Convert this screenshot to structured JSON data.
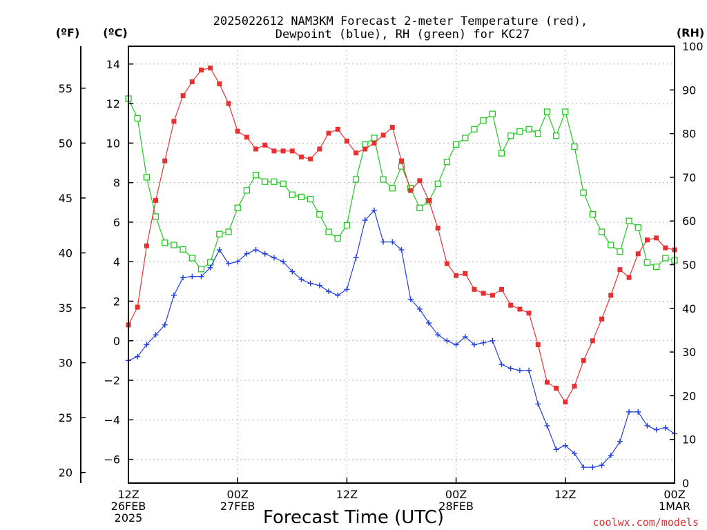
{
  "chart_data": {
    "type": "line",
    "title_line1": "2025022612 NAM3KM Forecast 2-meter Temperature (red),",
    "title_line2": "Dewpoint (blue), RH (green) for KC27",
    "xlabel": "Forecast Time (UTC)",
    "credit": "coolwx.com/models",
    "left_units_f": "(ºF)",
    "left_units_c": "(ºC)",
    "right_units": "(RH)",
    "x_hours_range": [
      0,
      60
    ],
    "x_ticks": [
      {
        "hour": 0,
        "line1": "12Z",
        "line2": "26FEB",
        "line3": "2025"
      },
      {
        "hour": 12,
        "line1": "00Z",
        "line2": "27FEB",
        "line3": ""
      },
      {
        "hour": 24,
        "line1": "12Z",
        "line2": "",
        "line3": ""
      },
      {
        "hour": 36,
        "line1": "00Z",
        "line2": "28FEB",
        "line3": ""
      },
      {
        "hour": 48,
        "line1": "12Z",
        "line2": "",
        "line3": ""
      },
      {
        "hour": 60,
        "line1": "00Z",
        "line2": "1MAR",
        "line3": ""
      }
    ],
    "celsius_range": [
      -7.2,
      14.9
    ],
    "celsius_ticks": [
      "14",
      "12",
      "10",
      "8",
      "6",
      "4",
      "2",
      "0",
      "−2",
      "−4",
      "−6"
    ],
    "celsius_tick_values": [
      14,
      12,
      10,
      8,
      6,
      4,
      2,
      0,
      -2,
      -4,
      -6
    ],
    "fahrenheit_ticks": [
      "55",
      "50",
      "45",
      "40",
      "35",
      "30",
      "25",
      "20"
    ],
    "fahrenheit_tick_values": [
      55,
      50,
      45,
      40,
      35,
      30,
      25,
      20
    ],
    "rh_range": [
      0,
      100
    ],
    "rh_ticks": [
      "100",
      "90",
      "80",
      "70",
      "60",
      "50",
      "40",
      "30",
      "20",
      "10",
      "0"
    ],
    "rh_tick_values": [
      100,
      90,
      80,
      70,
      60,
      50,
      40,
      30,
      20,
      10,
      0
    ],
    "colors": {
      "temperature": "#e83030",
      "dewpoint": "#2040e0",
      "rh": "#20c820"
    },
    "series": [
      {
        "name": "Temperature",
        "units": "C",
        "values": [
          0.8,
          1.7,
          4.8,
          7.1,
          9.1,
          11.1,
          12.4,
          13.1,
          13.7,
          13.8,
          13.0,
          12.0,
          10.6,
          10.3,
          9.7,
          9.9,
          9.6,
          9.6,
          9.6,
          9.3,
          9.2,
          9.7,
          10.5,
          10.7,
          10.1,
          9.5,
          9.7,
          10.0,
          10.4,
          10.8,
          9.1,
          7.6,
          8.1,
          7.1,
          5.7,
          3.9,
          3.3,
          3.4,
          2.6,
          2.4,
          2.3,
          2.6,
          1.8,
          1.6,
          1.4,
          -0.2,
          -2.1,
          -2.4,
          -3.1,
          -2.3,
          -1.0,
          0.0,
          1.1,
          2.3,
          3.6,
          3.2,
          4.4,
          5.1,
          5.2,
          4.7,
          4.6
        ]
      },
      {
        "name": "Dewpoint",
        "units": "C",
        "values": [
          -1.0,
          -0.8,
          -0.2,
          0.3,
          0.8,
          2.3,
          3.2,
          3.25,
          3.25,
          3.7,
          4.6,
          3.9,
          4.0,
          4.4,
          4.6,
          4.4,
          4.2,
          4.0,
          3.5,
          3.1,
          2.9,
          2.8,
          2.5,
          2.3,
          2.6,
          4.2,
          6.1,
          6.6,
          5.0,
          5.0,
          4.6,
          2.1,
          1.6,
          0.9,
          0.3,
          0.0,
          -0.2,
          0.2,
          -0.2,
          -0.1,
          0.0,
          -1.2,
          -1.4,
          -1.5,
          -1.5,
          -3.2,
          -4.3,
          -5.5,
          -5.3,
          -5.7,
          -6.4,
          -6.4,
          -6.3,
          -5.8,
          -5.1,
          -3.6,
          -3.6,
          -4.3,
          -4.5,
          -4.4,
          -4.7
        ]
      },
      {
        "name": "RH",
        "units": "%",
        "values": [
          88,
          83.5,
          70,
          61,
          55,
          54.5,
          53.5,
          51.5,
          49,
          50.5,
          57,
          57.5,
          63,
          67,
          70.5,
          69,
          69,
          68.5,
          66,
          65.5,
          65,
          61.5,
          57.5,
          56,
          59,
          69.5,
          77.5,
          79,
          69.5,
          67.5,
          72.5,
          67.5,
          63,
          64.5,
          68.5,
          73.5,
          77.5,
          79,
          81,
          83,
          84.5,
          75.5,
          79.5,
          80.5,
          81,
          80,
          85,
          79.5,
          85,
          77,
          66.5,
          61.5,
          57.5,
          54.5,
          53,
          60,
          58.5,
          50.5,
          49.5,
          51.5,
          51
        ]
      }
    ]
  }
}
